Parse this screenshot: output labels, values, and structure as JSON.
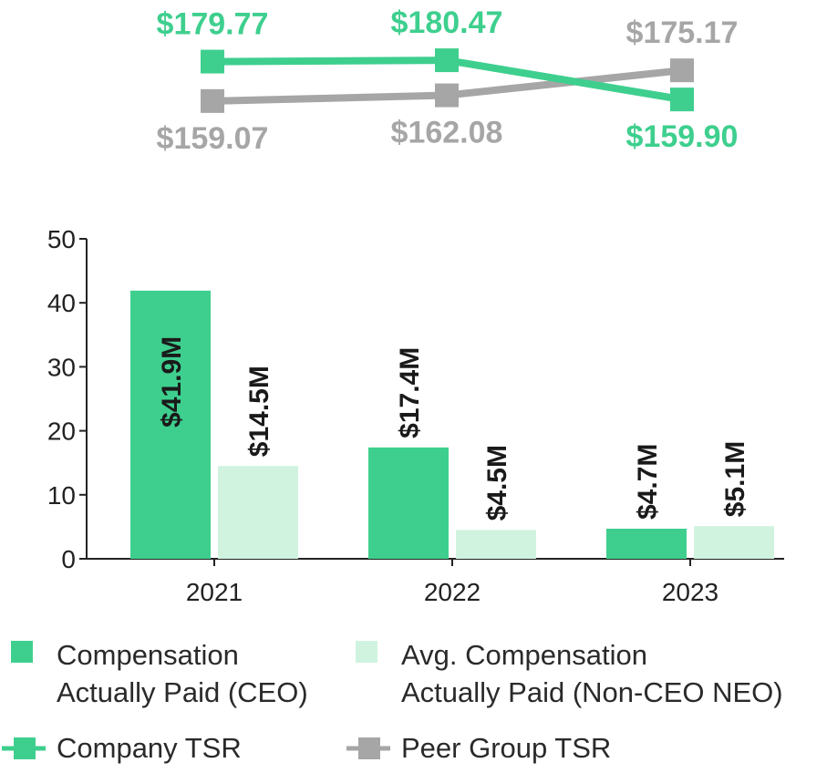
{
  "colors": {
    "ceo": "#3ecf8e",
    "neo": "#d0f3e0",
    "company_tsr": "#3ecf8e",
    "peer_tsr": "#a6a6a6",
    "axis": "#222222"
  },
  "chart_data": [
    {
      "type": "line",
      "x": [
        "2021",
        "2022",
        "2023"
      ],
      "series": [
        {
          "name": "Company TSR",
          "values": [
            179.77,
            180.47,
            159.9
          ],
          "labels": [
            "$179.77",
            "$180.47",
            "$159.90"
          ],
          "label_side": [
            "above",
            "above",
            "below"
          ]
        },
        {
          "name": "Peer Group TSR",
          "values": [
            159.07,
            162.08,
            175.17
          ],
          "labels": [
            "$159.07",
            "$162.08",
            "$175.17"
          ],
          "label_side": [
            "below",
            "below",
            "above"
          ]
        }
      ],
      "grid": false
    },
    {
      "type": "bar",
      "categories": [
        "2021",
        "2022",
        "2023"
      ],
      "series": [
        {
          "name": "Compensation Actually Paid (CEO)",
          "values": [
            41.9,
            17.4,
            4.7
          ],
          "labels": [
            "$41.9M",
            "$17.4M",
            "$4.7M"
          ]
        },
        {
          "name": "Avg. Compensation Actually Paid (Non-CEO NEO)",
          "values": [
            14.5,
            4.5,
            5.1
          ],
          "labels": [
            "$14.5M",
            "$4.5M",
            "$5.1M"
          ]
        }
      ],
      "ylim": [
        0,
        50
      ],
      "yticks": [
        0,
        10,
        20,
        30,
        40,
        50
      ],
      "xlabel": "",
      "ylabel": "",
      "grid": false
    }
  ],
  "legend": {
    "placement": "bottom",
    "items": [
      {
        "key": "ceo",
        "lines": [
          "Compensation",
          "Actually Paid (CEO)"
        ],
        "symbol": "square"
      },
      {
        "key": "neo",
        "lines": [
          "Avg. Compensation",
          "Actually Paid (Non-CEO NEO)"
        ],
        "symbol": "square"
      },
      {
        "key": "company_tsr",
        "lines": [
          "Company TSR"
        ],
        "symbol": "line-marker"
      },
      {
        "key": "peer_tsr",
        "lines": [
          "Peer Group TSR"
        ],
        "symbol": "line-marker"
      }
    ]
  }
}
